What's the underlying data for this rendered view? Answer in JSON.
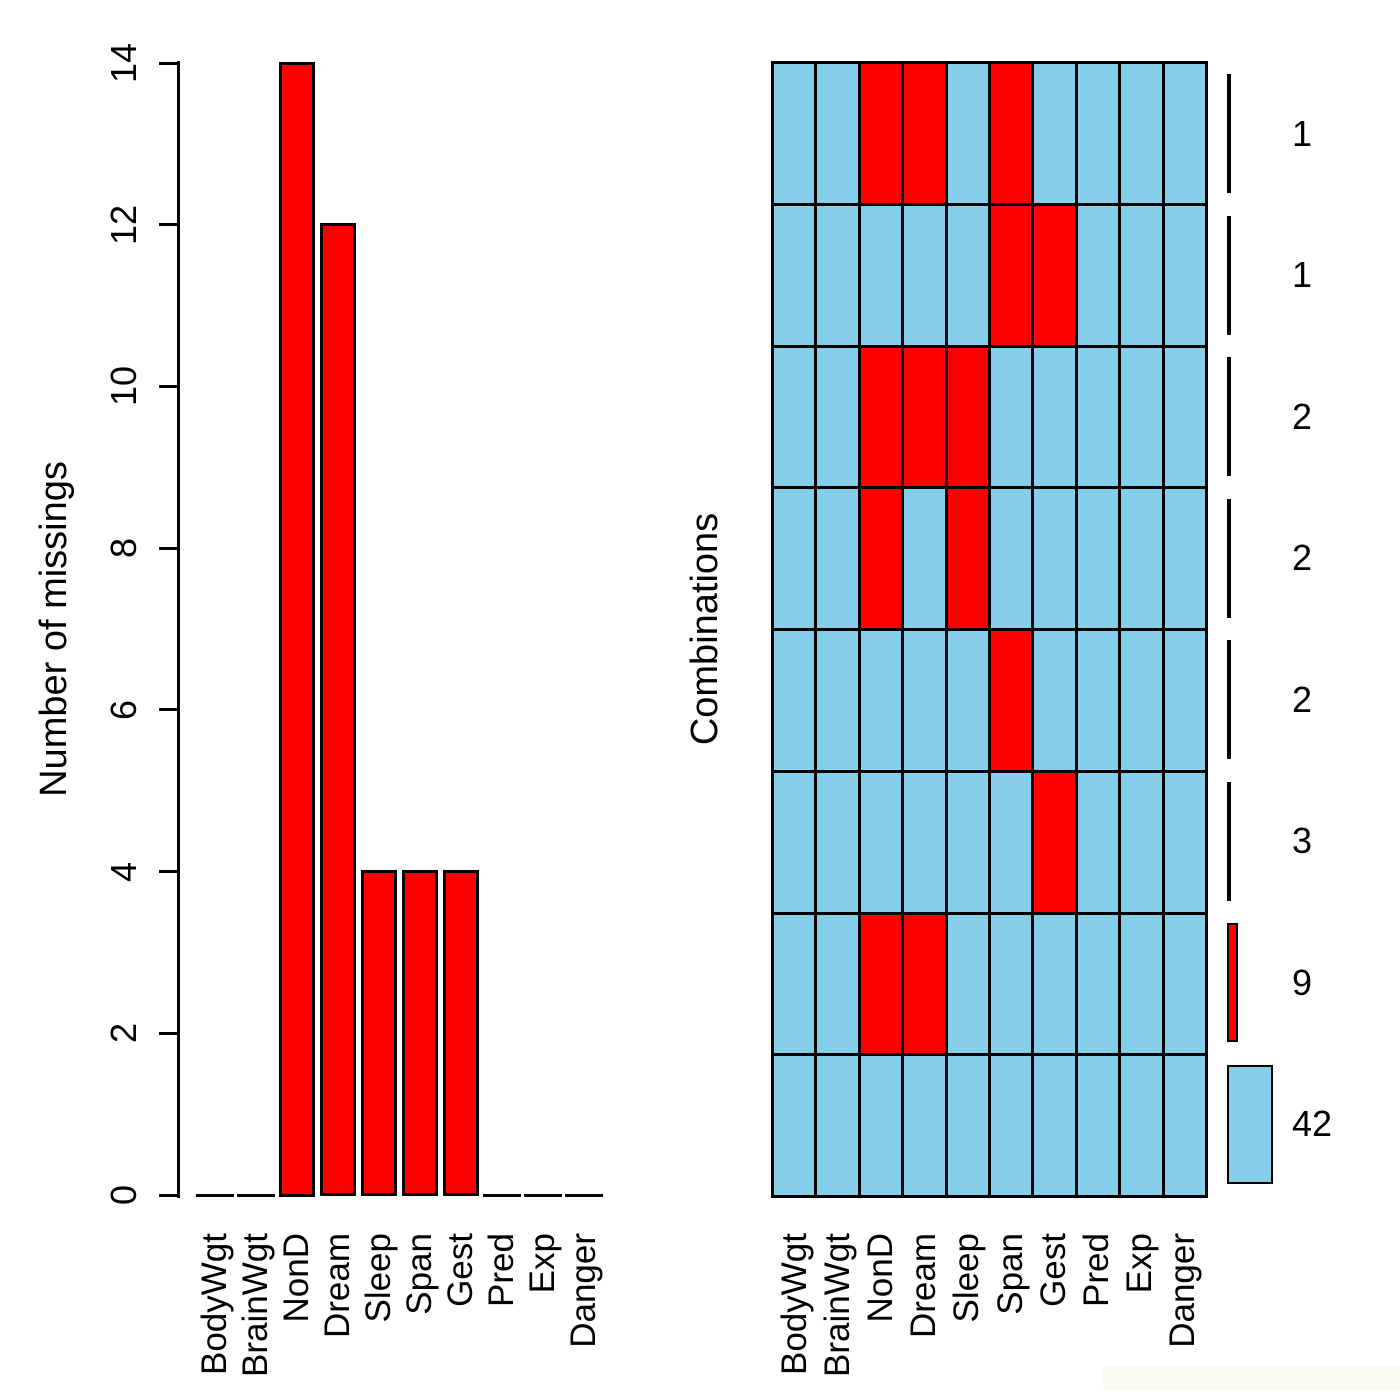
{
  "colors": {
    "missing": "#FF0000",
    "observed": "#87CEEB",
    "line": "#000000",
    "background": "#FFFFFF"
  },
  "variables": [
    "BodyWgt",
    "BrainWgt",
    "NonD",
    "Dream",
    "Sleep",
    "Span",
    "Gest",
    "Pred",
    "Exp",
    "Danger"
  ],
  "left_chart": {
    "ylabel": "Number of missings",
    "yticks": [
      0,
      2,
      4,
      6,
      8,
      10,
      12,
      14
    ],
    "ymax": 14,
    "values": [
      0,
      0,
      14,
      12,
      4,
      4,
      4,
      0,
      0,
      0
    ]
  },
  "right_chart": {
    "ylabel": "Combinations",
    "max_count": 42,
    "rows": [
      {
        "missing": [
          0,
          0,
          1,
          1,
          0,
          1,
          0,
          0,
          0,
          0
        ],
        "count": 1
      },
      {
        "missing": [
          0,
          0,
          0,
          0,
          0,
          1,
          1,
          0,
          0,
          0
        ],
        "count": 1
      },
      {
        "missing": [
          0,
          0,
          1,
          1,
          1,
          0,
          0,
          0,
          0,
          0
        ],
        "count": 2
      },
      {
        "missing": [
          0,
          0,
          1,
          0,
          1,
          0,
          0,
          0,
          0,
          0
        ],
        "count": 2
      },
      {
        "missing": [
          0,
          0,
          0,
          0,
          0,
          1,
          0,
          0,
          0,
          0
        ],
        "count": 2
      },
      {
        "missing": [
          0,
          0,
          0,
          0,
          0,
          0,
          1,
          0,
          0,
          0
        ],
        "count": 3
      },
      {
        "missing": [
          0,
          0,
          1,
          1,
          0,
          0,
          0,
          0,
          0,
          0
        ],
        "count": 9
      },
      {
        "missing": [
          0,
          0,
          0,
          0,
          0,
          0,
          0,
          0,
          0,
          0
        ],
        "count": 42
      }
    ]
  },
  "chart_data": [
    {
      "type": "bar",
      "title": "",
      "xlabel": "",
      "ylabel": "Number of missings",
      "categories": [
        "BodyWgt",
        "BrainWgt",
        "NonD",
        "Dream",
        "Sleep",
        "Span",
        "Gest",
        "Pred",
        "Exp",
        "Danger"
      ],
      "values": [
        0,
        0,
        14,
        12,
        4,
        4,
        4,
        0,
        0,
        0
      ],
      "ylim": [
        0,
        14
      ],
      "yticks": [
        0,
        2,
        4,
        6,
        8,
        10,
        12,
        14
      ],
      "bar_color": "#FF0000",
      "grid": false,
      "bar_label_rotation": "vertical"
    },
    {
      "type": "heatmap",
      "title": "",
      "xlabel": "",
      "ylabel": "Combinations",
      "columns": [
        "BodyWgt",
        "BrainWgt",
        "NonD",
        "Dream",
        "Sleep",
        "Span",
        "Gest",
        "Pred",
        "Exp",
        "Danger"
      ],
      "rows": [
        [
          0,
          0,
          1,
          1,
          0,
          1,
          0,
          0,
          0,
          0
        ],
        [
          0,
          0,
          0,
          0,
          0,
          1,
          1,
          0,
          0,
          0
        ],
        [
          0,
          0,
          1,
          1,
          1,
          0,
          0,
          0,
          0,
          0
        ],
        [
          0,
          0,
          1,
          0,
          1,
          0,
          0,
          0,
          0,
          0
        ],
        [
          0,
          0,
          0,
          0,
          0,
          1,
          0,
          0,
          0,
          0
        ],
        [
          0,
          0,
          0,
          0,
          0,
          0,
          1,
          0,
          0,
          0
        ],
        [
          0,
          0,
          1,
          1,
          0,
          0,
          0,
          0,
          0,
          0
        ],
        [
          0,
          0,
          0,
          0,
          0,
          0,
          0,
          0,
          0,
          0
        ]
      ],
      "row_counts": [
        1,
        1,
        2,
        2,
        2,
        3,
        9,
        42
      ],
      "cell_colors": {
        "1": "#FF0000",
        "0": "#87CEEB"
      },
      "legend_position": "right"
    }
  ]
}
